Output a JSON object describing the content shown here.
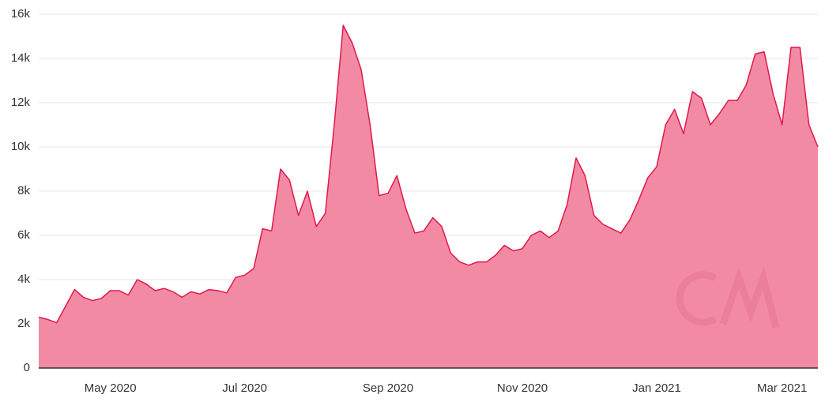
{
  "chart_data": {
    "type": "area",
    "categories": [
      null,
      null,
      null,
      null,
      null,
      null,
      null,
      null,
      "May 2020",
      null,
      null,
      null,
      null,
      null,
      null,
      null,
      null,
      null,
      null,
      null,
      null,
      null,
      null,
      "Jul 2020",
      null,
      null,
      null,
      null,
      null,
      null,
      null,
      null,
      null,
      null,
      null,
      null,
      null,
      null,
      null,
      "Sep 2020",
      null,
      null,
      null,
      null,
      null,
      null,
      null,
      null,
      null,
      null,
      null,
      null,
      null,
      null,
      "Nov 2020",
      null,
      null,
      null,
      null,
      null,
      null,
      null,
      null,
      null,
      null,
      null,
      null,
      null,
      null,
      "Jan 2021",
      null,
      null,
      null,
      null,
      null,
      null,
      null,
      null,
      null,
      null,
      null,
      null,
      null,
      "Mar 2021",
      null,
      null,
      null,
      null
    ],
    "values": [
      2300,
      2200,
      2050,
      2800,
      3550,
      3200,
      3050,
      3150,
      3500,
      3500,
      3300,
      4000,
      3800,
      3500,
      3600,
      3450,
      3200,
      3450,
      3350,
      3550,
      3500,
      3400,
      4100,
      4200,
      4500,
      6300,
      6200,
      9000,
      8500,
      6900,
      8000,
      6400,
      7000,
      11000,
      15500,
      14700,
      13500,
      11000,
      7800,
      7900,
      8700,
      7200,
      6100,
      6200,
      6800,
      6400,
      5200,
      4800,
      4650,
      4800,
      4800,
      5100,
      5550,
      5300,
      5400,
      6000,
      6200,
      5900,
      6200,
      7400,
      9500,
      8700,
      6900,
      6500,
      6300,
      6100,
      6700,
      7600,
      8600,
      9100,
      11000,
      11700,
      10600,
      12500,
      12200,
      11000,
      11500,
      12100,
      12100,
      12800,
      14200,
      14300,
      12400,
      11000,
      14500,
      14500,
      11000,
      10000
    ],
    "color": "#f28aa3",
    "line_color": "#e0194a",
    "ylim": [
      0,
      16000
    ],
    "yticks": [
      0,
      {
        "value": 2000,
        "label": "2k"
      },
      {
        "value": 4000,
        "label": "4k"
      },
      {
        "value": 6000,
        "label": "6k"
      },
      {
        "value": 8000,
        "label": "8k"
      },
      {
        "value": 10000,
        "label": "10k"
      },
      {
        "value": 12000,
        "label": "12k"
      },
      {
        "value": 14000,
        "label": "14k"
      },
      {
        "value": 16000,
        "label": "16k"
      }
    ],
    "grid": true
  }
}
